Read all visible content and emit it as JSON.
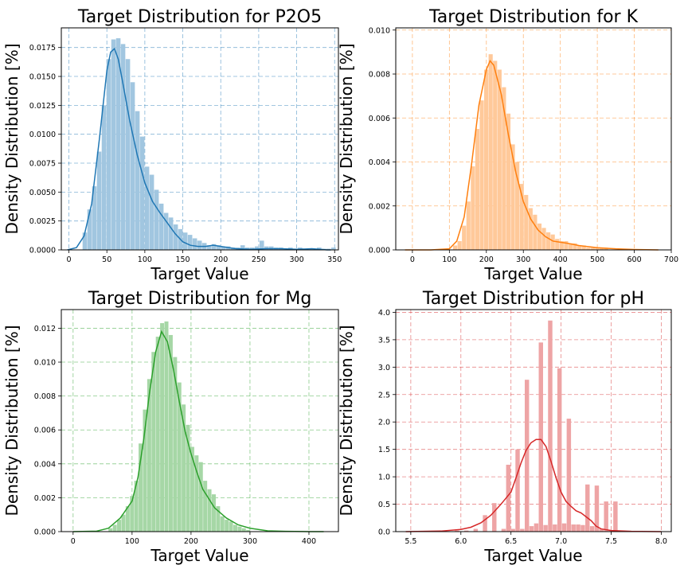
{
  "colors": {
    "P2O5": "#1f77b4",
    "K": "#ff7f0e",
    "Mg": "#2ca02c",
    "pH": "#d62728"
  },
  "chart_data": [
    {
      "type": "bar",
      "title": "Target Distribution for P2O5",
      "xlabel": "Target Value",
      "ylabel": "Density Distribution [%]",
      "color": "#1f77b4",
      "grid": true,
      "xlim": [
        -10,
        355
      ],
      "ylim": [
        0,
        0.0192
      ],
      "xticks": [
        0,
        50,
        100,
        150,
        200,
        250,
        300,
        350
      ],
      "yticks": [
        0.0,
        0.0025,
        0.005,
        0.0075,
        0.01,
        0.0125,
        0.015,
        0.0175
      ],
      "xtick_labels": [
        "0",
        "50",
        "100",
        "150",
        "200",
        "250",
        "300",
        "350"
      ],
      "ytick_labels": [
        "0.0000",
        "0.0025",
        "0.0050",
        "0.0075",
        "0.0100",
        "0.0125",
        "0.0150",
        "0.0175"
      ],
      "hist": {
        "bin_edges_start": 18,
        "bin_width": 6.3,
        "values": [
          0.0015,
          0.0035,
          0.0055,
          0.0085,
          0.0125,
          0.0165,
          0.0182,
          0.0183,
          0.0178,
          0.0165,
          0.0145,
          0.012,
          0.0098,
          0.0072,
          0.0065,
          0.0052,
          0.004,
          0.0032,
          0.0028,
          0.0022,
          0.0018,
          0.0015,
          0.0013,
          0.001,
          0.0008,
          0.0006,
          0.0004,
          0.0005,
          0.0004,
          0.0003,
          0.0003,
          0.0002,
          0.0002,
          0.0004,
          0.0002,
          0.0002,
          0.0003,
          0.0008,
          0.0003,
          0.0003,
          0.0002,
          0.0002,
          0.0001,
          0.0002,
          0.0001,
          0.0002,
          0.0001,
          0.0001,
          0.0001,
          0.0002,
          0.0001,
          0.0001,
          0.0002
        ]
      },
      "kde": {
        "x": [
          -2,
          10,
          20,
          30,
          40,
          50,
          55,
          60,
          65,
          70,
          80,
          90,
          100,
          110,
          120,
          130,
          140,
          150,
          160,
          170,
          180,
          190,
          200,
          210,
          220,
          240,
          260,
          280,
          300,
          320,
          340,
          345
        ],
        "y": [
          0.0,
          0.0002,
          0.0012,
          0.004,
          0.0095,
          0.0155,
          0.0171,
          0.0174,
          0.0165,
          0.0148,
          0.0112,
          0.0082,
          0.0058,
          0.0042,
          0.0032,
          0.0023,
          0.0014,
          0.0007,
          0.0004,
          0.0003,
          0.0003,
          0.0004,
          0.0003,
          0.0002,
          0.0001,
          5e-05,
          0.0001,
          0.0001,
          5e-05,
          0.0001,
          0.0,
          0.0
        ]
      }
    },
    {
      "type": "bar",
      "title": "Target Distribution for K",
      "xlabel": "Target Value",
      "ylabel": "Density Distribution [%]",
      "color": "#ff7f0e",
      "grid": true,
      "xlim": [
        -45,
        700
      ],
      "ylim": [
        0,
        0.0101
      ],
      "xticks": [
        0,
        100,
        200,
        300,
        400,
        500,
        600,
        700
      ],
      "yticks": [
        0.0,
        0.002,
        0.004,
        0.006,
        0.008,
        0.01
      ],
      "xtick_labels": [
        "0",
        "100",
        "200",
        "300",
        "400",
        "500",
        "600",
        "700"
      ],
      "ytick_labels": [
        "0.000",
        "0.002",
        "0.004",
        "0.006",
        "0.008",
        "0.010"
      ],
      "hist": {
        "bin_edges_start": 110,
        "bin_width": 12,
        "values": [
          0.0002,
          0.0004,
          0.0011,
          0.0022,
          0.0038,
          0.0055,
          0.0068,
          0.0082,
          0.0089,
          0.0086,
          0.0082,
          0.0074,
          0.0062,
          0.0048,
          0.004,
          0.003,
          0.0025,
          0.0019,
          0.0016,
          0.0012,
          0.001,
          0.0008,
          0.0007,
          0.0005,
          0.0004,
          0.0004,
          0.0003,
          0.0003,
          0.0002,
          0.0002,
          0.0001,
          0.0001,
          0.0001,
          0.0001,
          0.0001
        ]
      },
      "kde": {
        "x": [
          -20,
          50,
          100,
          120,
          140,
          160,
          180,
          200,
          210,
          220,
          240,
          260,
          280,
          300,
          320,
          340,
          360,
          380,
          400,
          420,
          450,
          500,
          550,
          600,
          665
        ],
        "y": [
          0.0,
          0.0,
          5e-05,
          0.0004,
          0.0015,
          0.0039,
          0.0066,
          0.0082,
          0.0086,
          0.0084,
          0.0071,
          0.0052,
          0.0035,
          0.0022,
          0.0014,
          0.0009,
          0.0006,
          0.0004,
          0.00035,
          0.0003,
          0.0002,
          0.0001,
          5e-05,
          2e-05,
          0.0
        ]
      }
    },
    {
      "type": "bar",
      "title": "Target Distribution for Mg",
      "xlabel": "Target Value",
      "ylabel": "Density Distribution [%]",
      "color": "#2ca02c",
      "grid": true,
      "xlim": [
        -20,
        450
      ],
      "ylim": [
        0,
        0.0131
      ],
      "xticks": [
        0,
        100,
        200,
        300,
        400
      ],
      "yticks": [
        0.0,
        0.002,
        0.004,
        0.006,
        0.008,
        0.01,
        0.012
      ],
      "xtick_labels": [
        "0",
        "100",
        "200",
        "300",
        "400"
      ],
      "ytick_labels": [
        "0.000",
        "0.002",
        "0.004",
        "0.006",
        "0.008",
        "0.010",
        "0.012"
      ],
      "hist": {
        "bin_edges_start": 60,
        "bin_width": 7.3,
        "values": [
          0.0002,
          0.0004,
          0.0007,
          0.001,
          0.0015,
          0.0021,
          0.003,
          0.0052,
          0.0072,
          0.009,
          0.0106,
          0.0115,
          0.0123,
          0.0124,
          0.0116,
          0.0103,
          0.0088,
          0.0075,
          0.0063,
          0.005,
          0.0045,
          0.0041,
          0.003,
          0.0025,
          0.0022,
          0.0015,
          0.0009,
          0.0007,
          0.0006,
          0.0004,
          0.0003,
          0.0002,
          0.0001
        ]
      },
      "kde": {
        "x": [
          0,
          40,
          60,
          80,
          100,
          110,
          120,
          130,
          140,
          150,
          160,
          170,
          180,
          190,
          200,
          210,
          220,
          240,
          260,
          280,
          300,
          330,
          360,
          400,
          425
        ],
        "y": [
          0.0,
          3e-05,
          0.0002,
          0.0008,
          0.0018,
          0.0032,
          0.0055,
          0.0083,
          0.0106,
          0.0118,
          0.0112,
          0.0096,
          0.0077,
          0.0059,
          0.0046,
          0.0035,
          0.0025,
          0.0014,
          0.0008,
          0.0004,
          0.0002,
          5e-05,
          2e-05,
          0.0,
          0.0
        ]
      }
    },
    {
      "type": "bar",
      "title": "Target Distribution for pH",
      "xlabel": "Target Value",
      "ylabel": "Density Distribution [%]",
      "color": "#d62728",
      "grid": true,
      "xlim": [
        5.35,
        8.1
      ],
      "ylim": [
        0,
        4.05
      ],
      "xticks": [
        5.5,
        6.0,
        6.5,
        7.0,
        7.5,
        8.0
      ],
      "yticks": [
        0.0,
        0.5,
        1.0,
        1.5,
        2.0,
        2.5,
        3.0,
        3.5,
        4.0
      ],
      "xtick_labels": [
        "5.5",
        "6.0",
        "6.5",
        "7.0",
        "7.5",
        "8.0"
      ],
      "ytick_labels": [
        "0.0",
        "0.5",
        "1.0",
        "1.5",
        "2.0",
        "2.5",
        "3.0",
        "3.5",
        "4.0"
      ],
      "hist": {
        "bin_edges_start": 5.94,
        "bin_width": 0.0465,
        "values": [
          0.02,
          0.0,
          0.02,
          0.0,
          0.05,
          0.0,
          0.3,
          0.0,
          0.52,
          0.0,
          0.05,
          1.22,
          0.05,
          1.5,
          0.05,
          2.77,
          0.1,
          0.15,
          3.45,
          0.12,
          3.85,
          0.13,
          2.98,
          0.15,
          2.06,
          0.13,
          0.13,
          0.12,
          0.86,
          0.1,
          0.84,
          0.05,
          0.55,
          0.02,
          0.55
        ]
      },
      "kde": {
        "x": [
          5.45,
          5.8,
          6.0,
          6.1,
          6.2,
          6.3,
          6.4,
          6.5,
          6.55,
          6.6,
          6.65,
          6.7,
          6.75,
          6.8,
          6.85,
          6.9,
          6.95,
          7.0,
          7.05,
          7.1,
          7.15,
          7.2,
          7.3,
          7.35,
          7.4,
          7.5,
          7.7,
          8.0
        ],
        "y": [
          0.0,
          0.01,
          0.04,
          0.08,
          0.16,
          0.3,
          0.5,
          0.72,
          0.98,
          1.25,
          1.48,
          1.62,
          1.68,
          1.68,
          1.55,
          1.28,
          0.98,
          0.72,
          0.55,
          0.46,
          0.38,
          0.34,
          0.2,
          0.1,
          0.05,
          0.02,
          0.005,
          0.0
        ]
      }
    }
  ]
}
